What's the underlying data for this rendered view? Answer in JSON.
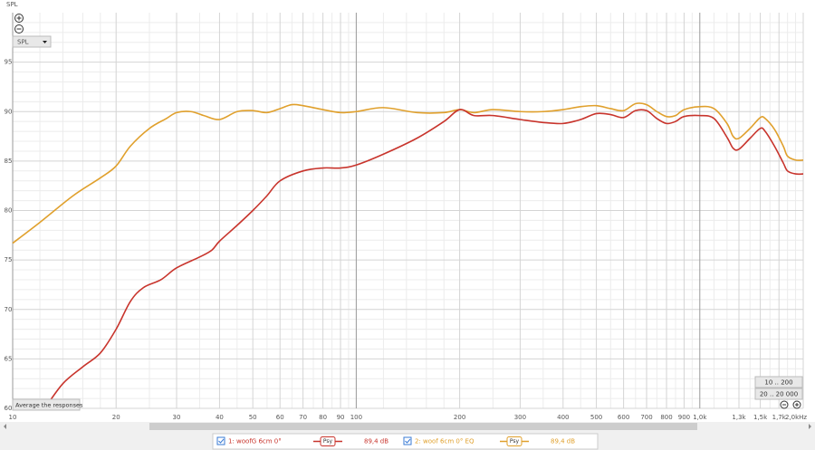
{
  "chart_data": {
    "type": "line",
    "y_label": "SPL",
    "xscale": "log",
    "xlim": [
      10,
      2000
    ],
    "ylim": [
      60,
      100
    ],
    "xticks": [
      10,
      20,
      30,
      40,
      50,
      60,
      70,
      80,
      90,
      100,
      200,
      300,
      400,
      500,
      600,
      700,
      800,
      900,
      {
        "value": 1000,
        "label": "1,0k"
      },
      {
        "value": 1300,
        "label": "1,3k"
      },
      {
        "value": 1500,
        "label": "1,5k"
      },
      {
        "value": 1700,
        "label": "1,7k"
      },
      {
        "value": 2000,
        "label": "2,0kHz"
      }
    ],
    "yticks": [
      60,
      65,
      70,
      75,
      80,
      85,
      90,
      95
    ],
    "minor_xticks": [
      12,
      14,
      16,
      18,
      25,
      35,
      45,
      55,
      65,
      75,
      85,
      95,
      120,
      140,
      160,
      180,
      250,
      350,
      450,
      550,
      650,
      750,
      850,
      950,
      1100,
      1200,
      1400,
      1600,
      1800,
      1900
    ],
    "minor_yticks": [
      61,
      62,
      63,
      64,
      66,
      67,
      68,
      69,
      71,
      72,
      73,
      74,
      76,
      77,
      78,
      79,
      81,
      82,
      83,
      84,
      86,
      87,
      88,
      89,
      91,
      92,
      93,
      94,
      96,
      97,
      98,
      99
    ],
    "grid": true,
    "series": [
      {
        "name": "1: woofG 6cm 0°",
        "color": "#c8342c",
        "smoothing": "Psy",
        "readout": "89,4 dB",
        "x": [
          12.4,
          14,
          16,
          18,
          20,
          22,
          24,
          27,
          30,
          35,
          38,
          40,
          45,
          50,
          55,
          60,
          70,
          80,
          90,
          100,
          120,
          150,
          180,
          200,
          220,
          250,
          300,
          350,
          400,
          450,
          500,
          550,
          600,
          650,
          700,
          750,
          800,
          850,
          900,
          1000,
          1100,
          1200,
          1250,
          1300,
          1400,
          1500,
          1550,
          1650,
          1750,
          1800,
          1900,
          2000
        ],
        "values": [
          60,
          62.5,
          64.2,
          65.6,
          68,
          70.8,
          72.2,
          73,
          74.2,
          75.3,
          76,
          76.9,
          78.5,
          80,
          81.5,
          83,
          84,
          84.3,
          84.3,
          84.6,
          85.7,
          87.3,
          89,
          90.2,
          89.6,
          89.6,
          89.2,
          88.9,
          88.8,
          89.2,
          89.8,
          89.7,
          89.4,
          90.1,
          90.1,
          89.3,
          88.8,
          89,
          89.5,
          89.6,
          89.3,
          87.4,
          86.3,
          86.2,
          87.3,
          88.3,
          88,
          86.5,
          84.8,
          84,
          83.7,
          83.7
        ]
      },
      {
        "name": "2: woof 6cm 0° EQ",
        "color": "#e0a02c",
        "smoothing": "Psy",
        "readout": "89,4 dB",
        "x": [
          10,
          12,
          15,
          18,
          20,
          22,
          25,
          28,
          30,
          33,
          36,
          40,
          45,
          50,
          55,
          60,
          65,
          70,
          80,
          90,
          100,
          120,
          150,
          180,
          200,
          220,
          250,
          300,
          350,
          400,
          450,
          500,
          550,
          600,
          650,
          700,
          750,
          800,
          850,
          900,
          1000,
          1100,
          1200,
          1250,
          1300,
          1400,
          1500,
          1550,
          1650,
          1750,
          1800,
          1900,
          2000
        ],
        "values": [
          76.7,
          78.8,
          81.5,
          83.3,
          84.5,
          86.5,
          88.3,
          89.3,
          89.9,
          90,
          89.6,
          89.2,
          90,
          90.1,
          89.9,
          90.3,
          90.7,
          90.6,
          90.2,
          89.9,
          90,
          90.4,
          89.9,
          89.9,
          90.2,
          89.9,
          90.2,
          90,
          90,
          90.2,
          90.5,
          90.6,
          90.3,
          90.1,
          90.8,
          90.7,
          90,
          89.5,
          89.6,
          90.2,
          90.5,
          90.3,
          88.8,
          87.5,
          87.3,
          88.3,
          89.4,
          89.3,
          88.2,
          86.5,
          85.5,
          85.1,
          85.1
        ]
      }
    ]
  },
  "ui": {
    "dropdown": "SPL",
    "average_button": "Average the responses",
    "range_buttons": [
      "10 .. 200",
      "20 .. 20 000"
    ]
  }
}
